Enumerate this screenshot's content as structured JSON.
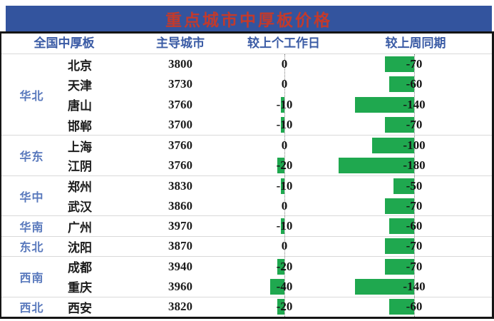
{
  "chart_data": {
    "type": "table",
    "title": "重点城市中厚板价格",
    "columns": [
      "全国中厚板",
      "主导城市",
      "较上个工作日",
      "较上周同期"
    ],
    "bar_columns": [
      "较上个工作日",
      "较上周同期"
    ],
    "groups": [
      {
        "region": "华北",
        "rows": [
          {
            "city": "北京",
            "price": 3800,
            "vs_prev_workday": 0,
            "vs_last_week": -70
          },
          {
            "city": "天津",
            "price": 3730,
            "vs_prev_workday": 0,
            "vs_last_week": -60
          },
          {
            "city": "唐山",
            "price": 3760,
            "vs_prev_workday": -10,
            "vs_last_week": -140
          },
          {
            "city": "邯郸",
            "price": 3700,
            "vs_prev_workday": -10,
            "vs_last_week": -70
          }
        ]
      },
      {
        "region": "华东",
        "rows": [
          {
            "city": "上海",
            "price": 3760,
            "vs_prev_workday": 0,
            "vs_last_week": -100
          },
          {
            "city": "江阴",
            "price": 3760,
            "vs_prev_workday": -20,
            "vs_last_week": -180
          }
        ]
      },
      {
        "region": "华中",
        "rows": [
          {
            "city": "郑州",
            "price": 3830,
            "vs_prev_workday": -10,
            "vs_last_week": -50
          },
          {
            "city": "武汉",
            "price": 3860,
            "vs_prev_workday": 0,
            "vs_last_week": -70
          }
        ]
      },
      {
        "region": "华南",
        "rows": [
          {
            "city": "广州",
            "price": 3970,
            "vs_prev_workday": -10,
            "vs_last_week": -60
          }
        ]
      },
      {
        "region": "东北",
        "rows": [
          {
            "city": "沈阳",
            "price": 3870,
            "vs_prev_workday": 0,
            "vs_last_week": -70
          }
        ]
      },
      {
        "region": "西南",
        "rows": [
          {
            "city": "成都",
            "price": 3940,
            "vs_prev_workday": -20,
            "vs_last_week": -70
          },
          {
            "city": "重庆",
            "price": 3960,
            "vs_prev_workday": -40,
            "vs_last_week": -140
          }
        ]
      },
      {
        "region": "西北",
        "rows": [
          {
            "city": "西安",
            "price": 3820,
            "vs_prev_workday": -20,
            "vs_last_week": -60
          }
        ]
      }
    ]
  },
  "colors": {
    "banner_bg": "#33549E",
    "title_color": "#C23A2C",
    "header_text": "#3A5BA5",
    "region_text": "#5878BC",
    "bar_color": "#1FA84F"
  }
}
